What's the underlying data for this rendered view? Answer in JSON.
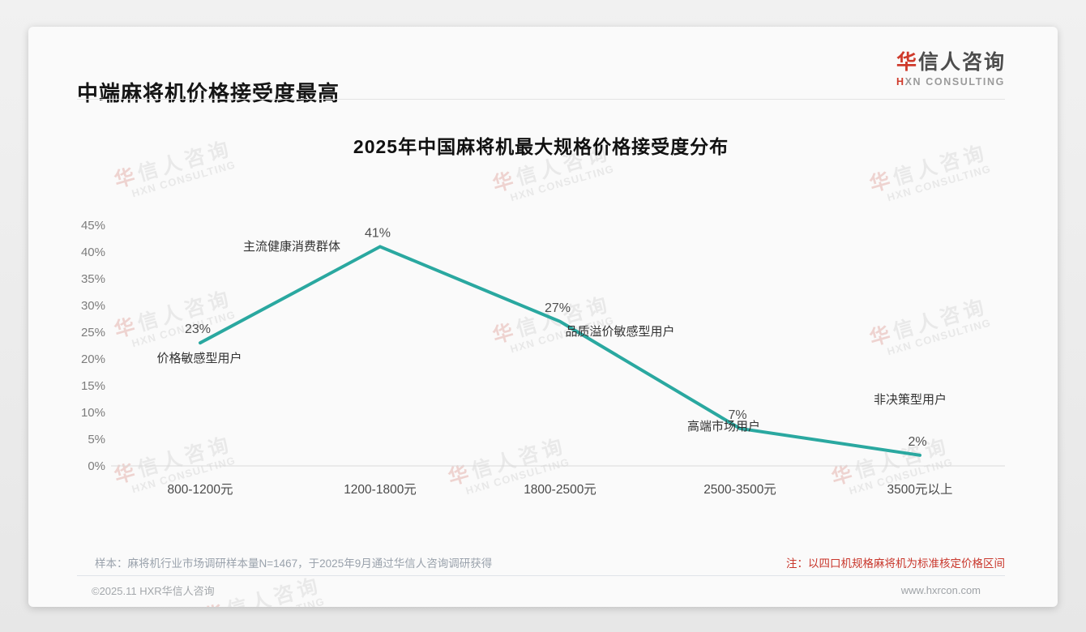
{
  "header": {
    "title": "中端麻将机价格接受度最高",
    "logo_cn_accent": "华",
    "logo_cn_rest": "信人咨询",
    "logo_en_accent": "H",
    "logo_en_rest": "XN CONSULTING"
  },
  "watermark": {
    "cn_accent": "华",
    "cn_rest": "信人咨询",
    "en": "HXN CONSULTING"
  },
  "chart_data": {
    "type": "line",
    "title": "2025年中国麻将机最大规格价格接受度分布",
    "categories": [
      "800-1200元",
      "1200-1800元",
      "1800-2500元",
      "2500-3500元",
      "3500元以上"
    ],
    "values": [
      23,
      41,
      27,
      7,
      2
    ],
    "value_labels": [
      "23%",
      "41%",
      "27%",
      "7%",
      "2%"
    ],
    "annotations": [
      "价格敏感型用户",
      "主流健康消费群体",
      "品质溢价敏感型用户",
      "高端市场用户",
      "非决策型用户"
    ],
    "ylabel_ticks": [
      "45%",
      "40%",
      "35%",
      "30%",
      "25%",
      "20%",
      "15%",
      "10%",
      "5%",
      "0%"
    ],
    "ylim": [
      0,
      45
    ],
    "ytick_step": 5,
    "line_color": "#2aa8a0",
    "axis_color": "#d9d9d9",
    "grid": false,
    "legend": null
  },
  "notes": {
    "sample": "样本：麻将机行业市场调研样本量N=1467，于2025年9月通过华信人咨询调研获得",
    "pricing_note": "注：以四口机规格麻将机为标准核定价格区间"
  },
  "footer": {
    "copyright": "©2025.11 HXR华信人咨询",
    "website": "www.hxrcon.com"
  },
  "colors": {
    "accent_red": "#cf3a2b",
    "line_teal": "#2aa8a0"
  }
}
